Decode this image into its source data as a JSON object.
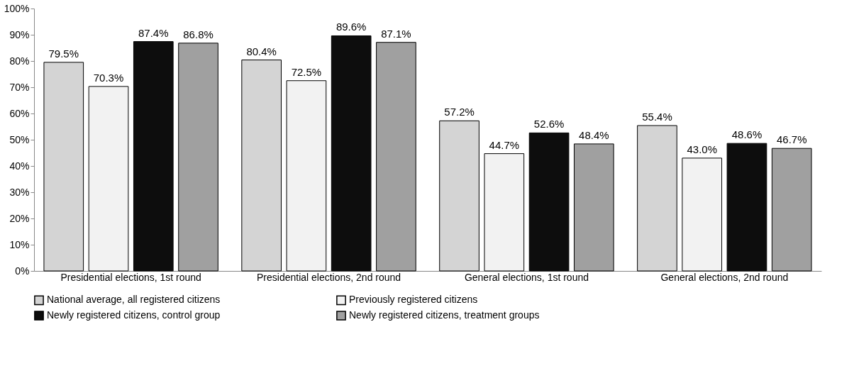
{
  "chart_data": {
    "type": "bar",
    "categories": [
      "Presidential elections, 1st round",
      "Presidential elections, 2nd round",
      "General elections, 1st round",
      "General elections, 2nd round"
    ],
    "series": [
      {
        "name": "National average, all registered citizens",
        "color": "#d4d4d4",
        "values": [
          79.5,
          80.4,
          57.2,
          55.4
        ],
        "value_labels": [
          "79.5%",
          "80.4%",
          "57.2%",
          "55.4%"
        ]
      },
      {
        "name": "Previously registered citizens",
        "color": "#f2f2f2",
        "values": [
          70.3,
          72.5,
          44.7,
          43.0
        ],
        "value_labels": [
          "70.3%",
          "72.5%",
          "44.7%",
          "43.0%"
        ]
      },
      {
        "name": "Newly registered citizens, control group",
        "color": "#0d0d0d",
        "values": [
          87.4,
          89.6,
          52.6,
          48.6
        ],
        "value_labels": [
          "87.4%",
          "89.6%",
          "52.6%",
          "48.6%"
        ]
      },
      {
        "name": "Newly registered citizens, treatment groups",
        "color": "#a0a0a0",
        "values": [
          86.8,
          87.1,
          48.4,
          46.7
        ],
        "value_labels": [
          "86.8%",
          "87.1%",
          "48.4%",
          "46.7%"
        ]
      }
    ],
    "ylim": [
      0,
      100
    ],
    "yticks": [
      {
        "value": 0,
        "label": "0%"
      },
      {
        "value": 10,
        "label": "10%"
      },
      {
        "value": 20,
        "label": "20%"
      },
      {
        "value": 30,
        "label": "30%"
      },
      {
        "value": 40,
        "label": "40%"
      },
      {
        "value": 50,
        "label": "50%"
      },
      {
        "value": 60,
        "label": "60%"
      },
      {
        "value": 70,
        "label": "70%"
      },
      {
        "value": 80,
        "label": "80%"
      },
      {
        "value": 90,
        "label": "90%"
      },
      {
        "value": 100,
        "label": "100%"
      }
    ],
    "grid": false,
    "legend": "bottom"
  }
}
